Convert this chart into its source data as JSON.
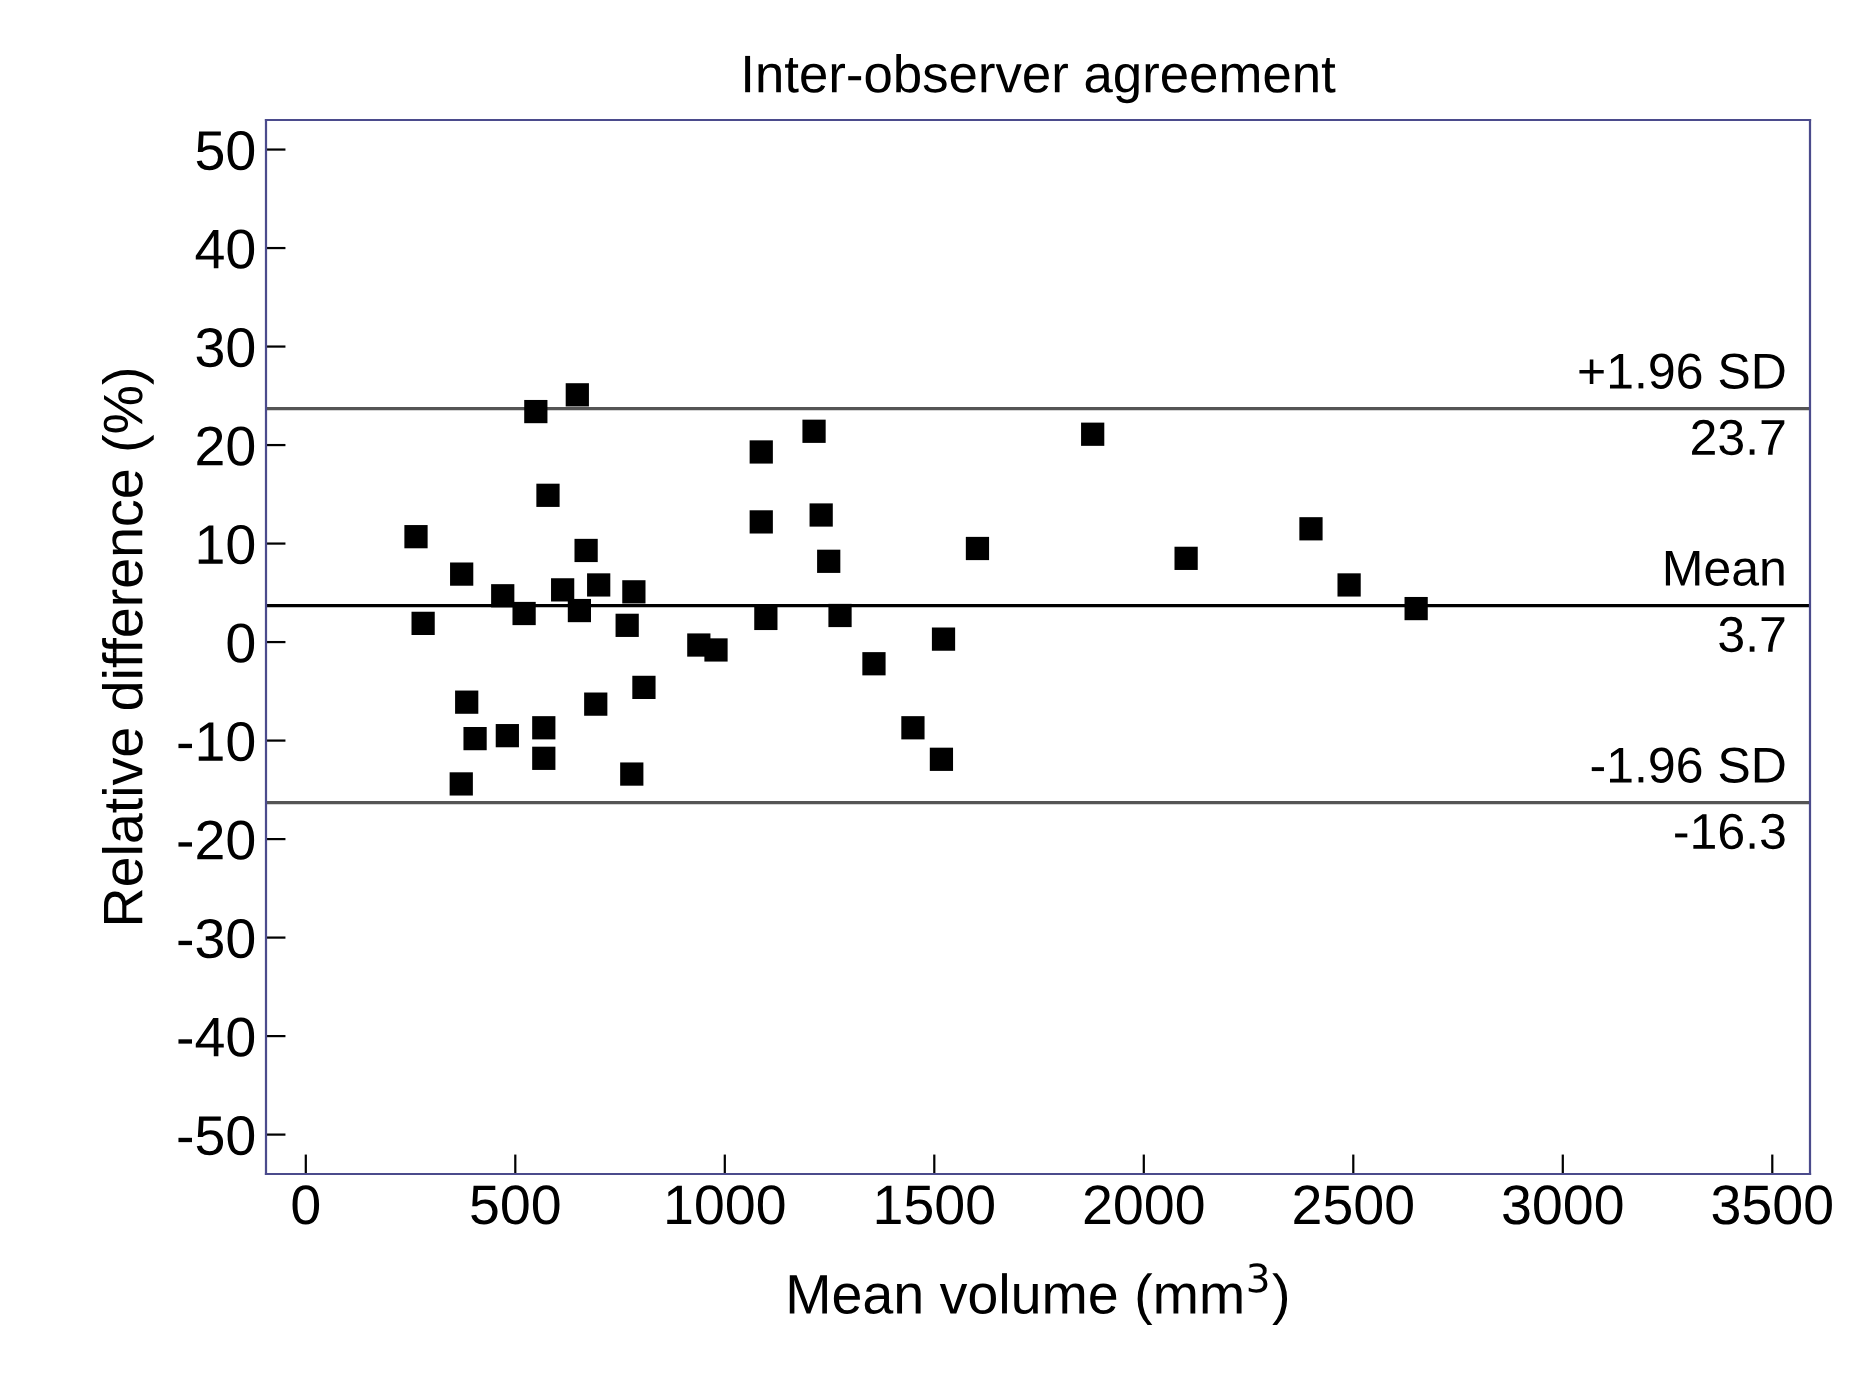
{
  "chart_data": {
    "type": "scatter",
    "title": "Inter-observer agreement",
    "xlabel": "Mean volume (mm$^{3}$)",
    "ylabel": "Relative difference (%)",
    "x": [
      263,
      280,
      372,
      371,
      384,
      404,
      470,
      481,
      521,
      549,
      568,
      568,
      578,
      613,
      648,
      653,
      669,
      692,
      699,
      767,
      778,
      783,
      807,
      938,
      979,
      1087,
      1087,
      1098,
      1213,
      1230,
      1248,
      1275,
      1356,
      1449,
      1517,
      1522,
      1603,
      1878,
      2101,
      2399,
      2490,
      2650
    ],
    "series": [
      {
        "color": "#000000",
        "values": [
          10.7,
          1.9,
          6.9,
          -14.4,
          -6.1,
          -9.8,
          4.7,
          -9.5,
          2.9,
          23.4,
          -8.7,
          -11.8,
          14.9,
          5.3,
          25.1,
          3.2,
          9.3,
          -6.3,
          5.8,
          1.7,
          -13.4,
          5.1,
          -4.6,
          -0.3,
          -0.8,
          19.3,
          12.2,
          2.4,
          21.4,
          12.9,
          8.2,
          2.7,
          -2.2,
          -8.7,
          -11.9,
          0.3,
          9.5,
          21.1,
          8.5,
          11.5,
          5.8,
          3.4
        ]
      }
    ],
    "marker": "square",
    "xlim": [
      -95,
      3590
    ],
    "ylim": [
      -54,
      53
    ],
    "xticks": [
      0,
      500,
      1000,
      1500,
      2000,
      2500,
      3000,
      3500
    ],
    "yticks": [
      -50,
      -40,
      -30,
      -20,
      -10,
      0,
      10,
      20,
      30,
      40,
      50
    ],
    "ref_lines": [
      {
        "axis": "y",
        "value": 23.7,
        "label": "+1.96 SD\n23.7",
        "color": "#555555"
      },
      {
        "axis": "y",
        "value": 3.7,
        "label": "Mean\n3.7",
        "color": "#000000"
      },
      {
        "axis": "y",
        "value": -16.3,
        "label": "-1.96 SD\n-16.3",
        "color": "#555555"
      }
    ],
    "grid": false,
    "legend": false
  }
}
